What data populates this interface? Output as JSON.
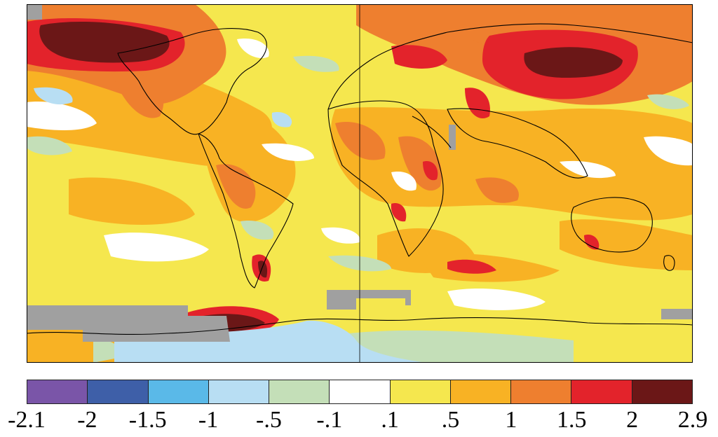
{
  "legend": {
    "ticks": [
      "-2.1",
      "-2",
      "-1.5",
      "-1",
      "-.5",
      "-.1",
      ".1",
      ".5",
      "1",
      "1.5",
      "2",
      "2.9"
    ],
    "colors": [
      "#7a55a8",
      "#3e5fa8",
      "#5ab9e8",
      "#b8def3",
      "#c4dfb8",
      "#ffffff",
      "#f5e74e",
      "#f8b224",
      "#ee7f2f",
      "#e3232b",
      "#6b1717"
    ],
    "bins": [
      {
        "min": -2.1,
        "max": -2
      },
      {
        "min": -2,
        "max": -1.5
      },
      {
        "min": -1.5,
        "max": -1
      },
      {
        "min": -1,
        "max": -0.5
      },
      {
        "min": -0.5,
        "max": -0.1
      },
      {
        "min": -0.1,
        "max": 0.1
      },
      {
        "min": 0.1,
        "max": 0.5
      },
      {
        "min": 0.5,
        "max": 1
      },
      {
        "min": 1,
        "max": 1.5
      },
      {
        "min": 1.5,
        "max": 2
      },
      {
        "min": 2,
        "max": 2.9
      }
    ]
  },
  "map": {
    "no_data_color": "#a0a0a0",
    "frame_color": "#000000",
    "coastline_color": "#000000"
  }
}
